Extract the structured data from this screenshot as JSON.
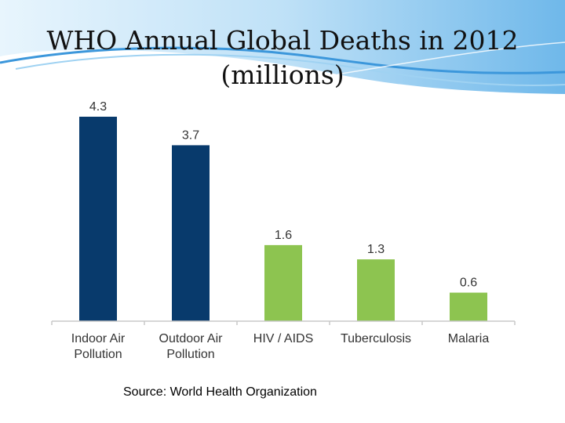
{
  "title_lines": [
    "WHO Annual Global Deaths in 2012",
    "(millions)"
  ],
  "source": "Source: World Health Organization",
  "colors": {
    "air_pollution": "#083a6c",
    "disease": "#8dc450",
    "banner_light": "#dbeefb",
    "banner_mid": "#7fc2ec",
    "banner_dark": "#2f8fd8"
  },
  "chart_data": {
    "type": "bar",
    "title": "WHO Annual Global Deaths in 2012 (millions)",
    "categories": [
      [
        "Indoor Air",
        "Pollution"
      ],
      [
        "Outdoor Air",
        "Pollution"
      ],
      [
        "HIV / AIDS"
      ],
      [
        "Tuberculosis"
      ],
      [
        "Malaria"
      ]
    ],
    "values": [
      4.3,
      3.7,
      1.6,
      1.3,
      0.6
    ],
    "value_labels": [
      "4.3",
      "3.7",
      "1.6",
      "1.3",
      "0.6"
    ],
    "bar_colors": [
      "#083a6c",
      "#083a6c",
      "#8dc450",
      "#8dc450",
      "#8dc450"
    ],
    "xlabel": "",
    "ylabel": "",
    "ylim": [
      0,
      4.3
    ],
    "grid": false,
    "legend": "none",
    "y_axis_visible": false
  }
}
